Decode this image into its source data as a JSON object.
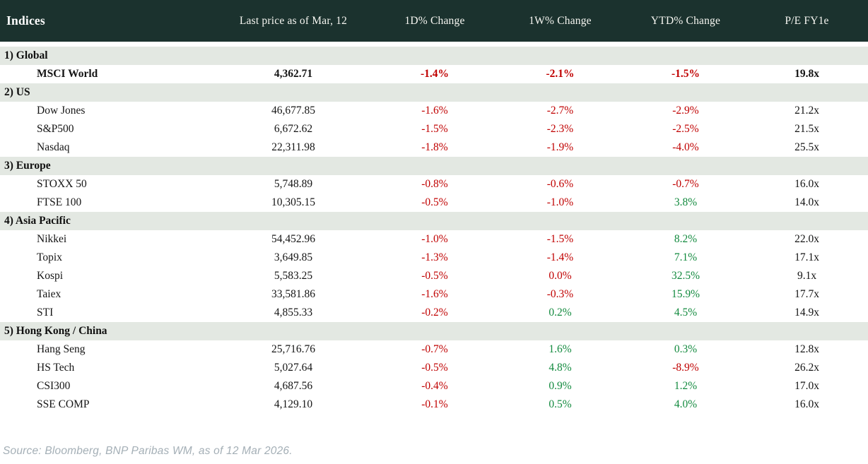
{
  "colors": {
    "header_bg": "#1b322e",
    "section_bg": "#e3e8e2",
    "negative": "#c00000",
    "positive": "#128a3e"
  },
  "table": {
    "columns": [
      "Indices",
      "Last price as of Mar, 12",
      "1D% Change",
      "1W% Change",
      "YTD% Change",
      "P/E FY1e"
    ],
    "sections": [
      {
        "label": "1) Global",
        "rows": [
          {
            "name": "MSCI World",
            "last_price": "4,362.71",
            "bold": true,
            "changes": [
              {
                "v": "-1.4%",
                "dir": "down"
              },
              {
                "v": "-2.1%",
                "dir": "down"
              },
              {
                "v": "-1.5%",
                "dir": "down"
              }
            ],
            "pe": "19.8x"
          }
        ]
      },
      {
        "label": "2) US",
        "rows": [
          {
            "name": "Dow Jones",
            "last_price": "46,677.85",
            "bold": false,
            "changes": [
              {
                "v": "-1.6%",
                "dir": "down"
              },
              {
                "v": "-2.7%",
                "dir": "down"
              },
              {
                "v": "-2.9%",
                "dir": "down"
              }
            ],
            "pe": "21.2x"
          },
          {
            "name": "S&P500",
            "last_price": "6,672.62",
            "bold": false,
            "changes": [
              {
                "v": "-1.5%",
                "dir": "down"
              },
              {
                "v": "-2.3%",
                "dir": "down"
              },
              {
                "v": "-2.5%",
                "dir": "down"
              }
            ],
            "pe": "21.5x"
          },
          {
            "name": "Nasdaq",
            "last_price": "22,311.98",
            "bold": false,
            "changes": [
              {
                "v": "-1.8%",
                "dir": "down"
              },
              {
                "v": "-1.9%",
                "dir": "down"
              },
              {
                "v": "-4.0%",
                "dir": "down"
              }
            ],
            "pe": "25.5x"
          }
        ]
      },
      {
        "label": "3) Europe",
        "rows": [
          {
            "name": "STOXX 50",
            "last_price": "5,748.89",
            "bold": false,
            "changes": [
              {
                "v": "-0.8%",
                "dir": "down"
              },
              {
                "v": "-0.6%",
                "dir": "down"
              },
              {
                "v": "-0.7%",
                "dir": "down"
              }
            ],
            "pe": "16.0x"
          },
          {
            "name": "FTSE 100",
            "last_price": "10,305.15",
            "bold": false,
            "changes": [
              {
                "v": "-0.5%",
                "dir": "down"
              },
              {
                "v": "-1.0%",
                "dir": "down"
              },
              {
                "v": "3.8%",
                "dir": "up"
              }
            ],
            "pe": "14.0x"
          }
        ]
      },
      {
        "label": "4) Asia Pacific",
        "rows": [
          {
            "name": "Nikkei",
            "last_price": "54,452.96",
            "bold": false,
            "changes": [
              {
                "v": "-1.0%",
                "dir": "down"
              },
              {
                "v": "-1.5%",
                "dir": "down"
              },
              {
                "v": "8.2%",
                "dir": "up"
              }
            ],
            "pe": "22.0x"
          },
          {
            "name": "Topix",
            "last_price": "3,649.85",
            "bold": false,
            "changes": [
              {
                "v": "-1.3%",
                "dir": "down"
              },
              {
                "v": "-1.4%",
                "dir": "down"
              },
              {
                "v": "7.1%",
                "dir": "up"
              }
            ],
            "pe": "17.1x"
          },
          {
            "name": "Kospi",
            "last_price": "5,583.25",
            "bold": false,
            "changes": [
              {
                "v": "-0.5%",
                "dir": "down"
              },
              {
                "v": "0.0%",
                "dir": "down"
              },
              {
                "v": "32.5%",
                "dir": "up"
              }
            ],
            "pe": "9.1x"
          },
          {
            "name": "Taiex",
            "last_price": "33,581.86",
            "bold": false,
            "changes": [
              {
                "v": "-1.6%",
                "dir": "down"
              },
              {
                "v": "-0.3%",
                "dir": "down"
              },
              {
                "v": "15.9%",
                "dir": "up"
              }
            ],
            "pe": "17.7x"
          },
          {
            "name": "STI",
            "last_price": "4,855.33",
            "bold": false,
            "changes": [
              {
                "v": "-0.2%",
                "dir": "down"
              },
              {
                "v": "0.2%",
                "dir": "up"
              },
              {
                "v": "4.5%",
                "dir": "up"
              }
            ],
            "pe": "14.9x"
          }
        ]
      },
      {
        "label": "5) Hong Kong / China",
        "rows": [
          {
            "name": "Hang Seng",
            "last_price": "25,716.76",
            "bold": false,
            "changes": [
              {
                "v": "-0.7%",
                "dir": "down"
              },
              {
                "v": "1.6%",
                "dir": "up"
              },
              {
                "v": "0.3%",
                "dir": "up"
              }
            ],
            "pe": "12.8x"
          },
          {
            "name": "HS Tech",
            "last_price": "5,027.64",
            "bold": false,
            "changes": [
              {
                "v": "-0.5%",
                "dir": "down"
              },
              {
                "v": "4.8%",
                "dir": "up"
              },
              {
                "v": "-8.9%",
                "dir": "down"
              }
            ],
            "pe": "26.2x"
          },
          {
            "name": "CSI300",
            "last_price": "4,687.56",
            "bold": false,
            "changes": [
              {
                "v": "-0.4%",
                "dir": "down"
              },
              {
                "v": "0.9%",
                "dir": "up"
              },
              {
                "v": "1.2%",
                "dir": "up"
              }
            ],
            "pe": "17.0x"
          },
          {
            "name": "SSE COMP",
            "last_price": "4,129.10",
            "bold": false,
            "changes": [
              {
                "v": "-0.1%",
                "dir": "down"
              },
              {
                "v": "0.5%",
                "dir": "up"
              },
              {
                "v": "4.0%",
                "dir": "up"
              }
            ],
            "pe": "16.0x"
          }
        ]
      }
    ]
  },
  "footer": {
    "source": "Source: Bloomberg, BNP Paribas WM, as of 12 Mar 2026."
  }
}
